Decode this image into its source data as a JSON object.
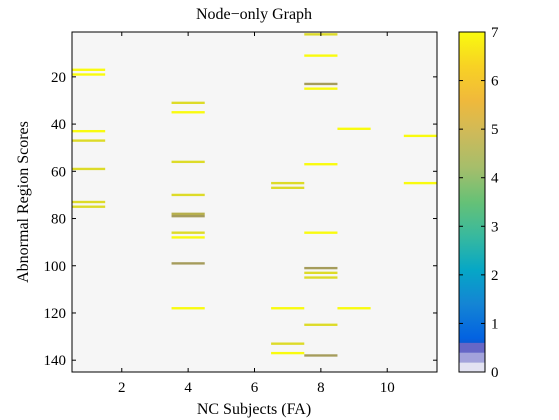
{
  "chart_data": {
    "type": "heatmap",
    "title": "Node−only Graph",
    "xlabel": "NC Subjects (FA)",
    "ylabel": "Abnormal Region Scores",
    "xlim": [
      0.5,
      11.5
    ],
    "ylim": [
      1,
      145
    ],
    "y_reversed": true,
    "x_ticks": [
      2,
      4,
      6,
      8,
      10
    ],
    "y_ticks": [
      20,
      40,
      60,
      80,
      100,
      120,
      140
    ],
    "x_tick_labels": [
      "2",
      "4",
      "6",
      "8",
      "10"
    ],
    "y_tick_labels": [
      "20",
      "40",
      "60",
      "80",
      "100",
      "120",
      "140"
    ],
    "colorbar": {
      "min": 0,
      "max": 7,
      "ticks": [
        0,
        1,
        2,
        3,
        4,
        5,
        6,
        7
      ],
      "tick_labels": [
        "0",
        "1",
        "2",
        "3",
        "4",
        "5",
        "6",
        "7"
      ],
      "colormap": "parula",
      "low_bands": [
        {
          "from": 0,
          "to": 0.2,
          "color": "#e3e3f2"
        },
        {
          "from": 0.2,
          "to": 0.4,
          "color": "#a3a3db"
        },
        {
          "from": 0.4,
          "to": 0.6,
          "color": "#6667c6"
        }
      ]
    },
    "background_color": "#f6f6f6",
    "marks": [
      {
        "x": 1,
        "y": 17,
        "v": 7
      },
      {
        "x": 1,
        "y": 19,
        "v": 7
      },
      {
        "x": 1,
        "y": 43,
        "v": 7
      },
      {
        "x": 1,
        "y": 47,
        "v": 6.5
      },
      {
        "x": 1,
        "y": 59,
        "v": 6.5
      },
      {
        "x": 1,
        "y": 73,
        "v": 6.5
      },
      {
        "x": 1,
        "y": 75,
        "v": 6.5
      },
      {
        "x": 4,
        "y": 31,
        "v": 6.5
      },
      {
        "x": 4,
        "y": 35,
        "v": 7
      },
      {
        "x": 4,
        "y": 56,
        "v": 6.5
      },
      {
        "x": 4,
        "y": 70,
        "v": 6.5
      },
      {
        "x": 4,
        "y": 78,
        "v": 5.8
      },
      {
        "x": 4,
        "y": 79,
        "v": 5.5
      },
      {
        "x": 4,
        "y": 86,
        "v": 6.5
      },
      {
        "x": 4,
        "y": 88,
        "v": 7
      },
      {
        "x": 4,
        "y": 99,
        "v": 5.5
      },
      {
        "x": 4,
        "y": 118,
        "v": 7
      },
      {
        "x": 7,
        "y": 65,
        "v": 6.5
      },
      {
        "x": 7,
        "y": 67,
        "v": 6.5
      },
      {
        "x": 7,
        "y": 118,
        "v": 7
      },
      {
        "x": 7,
        "y": 133,
        "v": 6.5
      },
      {
        "x": 7,
        "y": 137,
        "v": 7
      },
      {
        "x": 8,
        "y": 2,
        "v": 6.5
      },
      {
        "x": 8,
        "y": 11,
        "v": 7
      },
      {
        "x": 8,
        "y": 23,
        "v": 5.5
      },
      {
        "x": 8,
        "y": 25,
        "v": 7
      },
      {
        "x": 8,
        "y": 57,
        "v": 7
      },
      {
        "x": 8,
        "y": 86,
        "v": 7
      },
      {
        "x": 8,
        "y": 101,
        "v": 5.5
      },
      {
        "x": 8,
        "y": 103,
        "v": 6.5
      },
      {
        "x": 8,
        "y": 105,
        "v": 6.5
      },
      {
        "x": 8,
        "y": 125,
        "v": 6.5
      },
      {
        "x": 8,
        "y": 138,
        "v": 5.5
      },
      {
        "x": 9,
        "y": 42,
        "v": 7
      },
      {
        "x": 9,
        "y": 118,
        "v": 7
      },
      {
        "x": 11,
        "y": 45,
        "v": 7
      },
      {
        "x": 11,
        "y": 65,
        "v": 7
      }
    ]
  }
}
